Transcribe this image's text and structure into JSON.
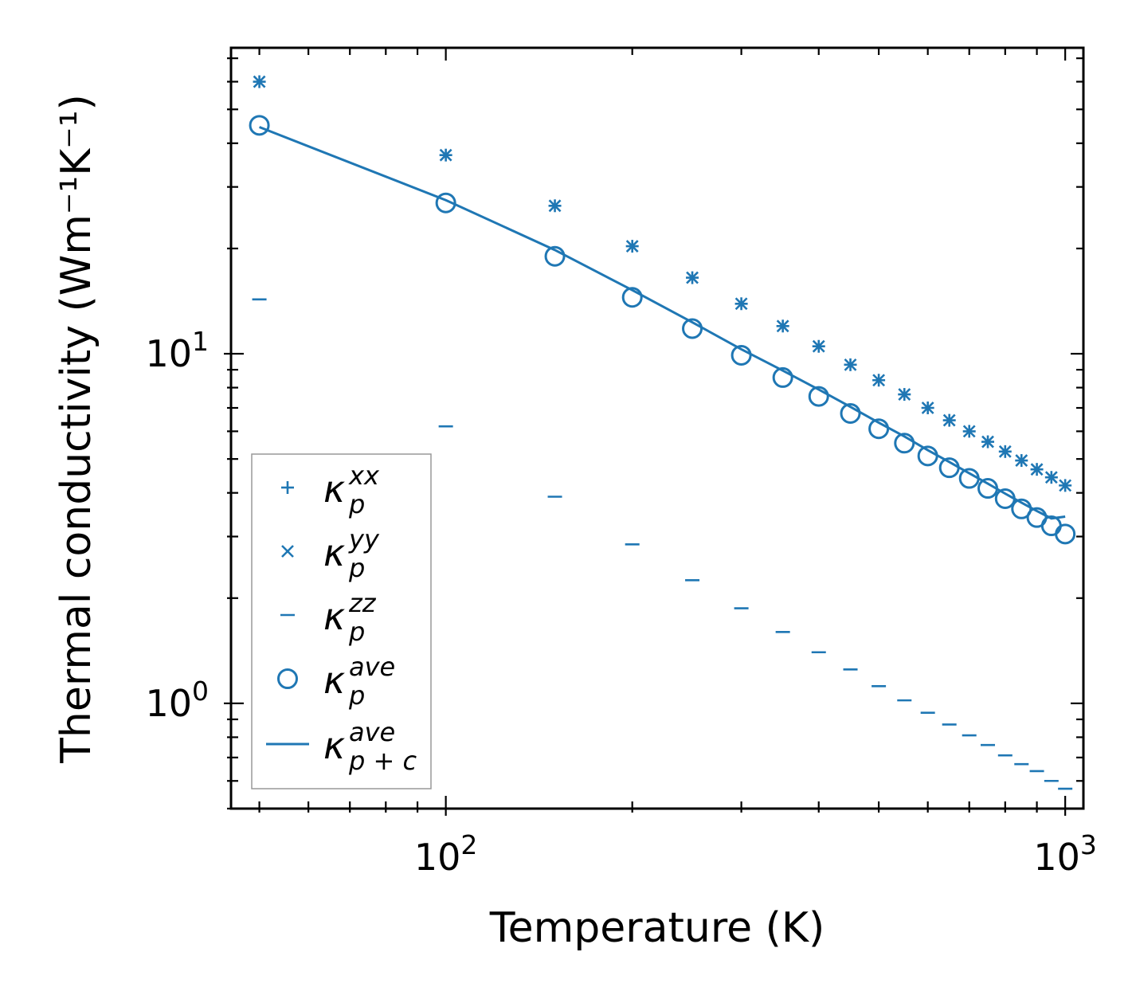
{
  "chart_data": {
    "type": "scatter",
    "xscale": "log",
    "yscale": "log",
    "xlabel": "Temperature (K)",
    "ylabel": "Thermal conductivity (Wm⁻¹K⁻¹)",
    "xlim": [
      45,
      1070
    ],
    "ylim": [
      0.5,
      75
    ],
    "x_ticks": [
      {
        "value": 100,
        "base": "10",
        "exp": "2"
      },
      {
        "value": 1000,
        "base": "10",
        "exp": "3"
      }
    ],
    "y_ticks": [
      {
        "value": 1,
        "base": "10",
        "exp": "0"
      },
      {
        "value": 10,
        "base": "10",
        "exp": "1"
      }
    ],
    "color": "#1f77b4",
    "x": [
      50,
      100,
      150,
      200,
      250,
      300,
      350,
      400,
      450,
      500,
      550,
      600,
      650,
      700,
      750,
      800,
      850,
      900,
      950,
      1000
    ],
    "series": [
      {
        "name": "κ_p^xx",
        "label_main": "κ",
        "label_sub": "p",
        "label_sup": "xx",
        "marker": "plus",
        "values": [
          60.0,
          37.0,
          26.5,
          20.3,
          16.5,
          13.9,
          12.0,
          10.5,
          9.3,
          8.4,
          7.65,
          7.0,
          6.45,
          6.0,
          5.6,
          5.25,
          4.95,
          4.67,
          4.43,
          4.2
        ]
      },
      {
        "name": "κ_p^yy",
        "label_main": "κ",
        "label_sub": "p",
        "label_sup": "yy",
        "marker": "x",
        "values": [
          60.0,
          37.0,
          26.5,
          20.3,
          16.5,
          13.9,
          12.0,
          10.5,
          9.3,
          8.4,
          7.65,
          7.0,
          6.45,
          6.0,
          5.6,
          5.25,
          4.95,
          4.67,
          4.43,
          4.2
        ]
      },
      {
        "name": "κ_p^zz",
        "label_main": "κ",
        "label_sub": "p",
        "label_sup": "zz",
        "marker": "hline",
        "values": [
          14.3,
          6.2,
          3.9,
          2.85,
          2.25,
          1.87,
          1.6,
          1.4,
          1.25,
          1.12,
          1.02,
          0.94,
          0.87,
          0.81,
          0.76,
          0.71,
          0.67,
          0.64,
          0.6,
          0.57
        ]
      },
      {
        "name": "κ_p^ave",
        "label_main": "κ",
        "label_sub": "p",
        "label_sup": "ave",
        "marker": "circle",
        "values": [
          45.0,
          27.0,
          19.0,
          14.5,
          11.8,
          9.9,
          8.55,
          7.55,
          6.75,
          6.1,
          5.55,
          5.1,
          4.72,
          4.4,
          4.12,
          3.85,
          3.6,
          3.4,
          3.22,
          3.05
        ]
      },
      {
        "name": "κ_p+c^ave",
        "label_main": "κ",
        "label_sub": "p + c",
        "label_sup": "ave",
        "marker": "line",
        "values": [
          44.5,
          27.5,
          19.8,
          15.2,
          12.3,
          10.3,
          8.95,
          7.9,
          7.05,
          6.35,
          5.8,
          5.3,
          4.9,
          4.55,
          4.25,
          3.98,
          3.75,
          3.55,
          3.38,
          3.42
        ]
      }
    ],
    "legend_position": "lower-left"
  }
}
